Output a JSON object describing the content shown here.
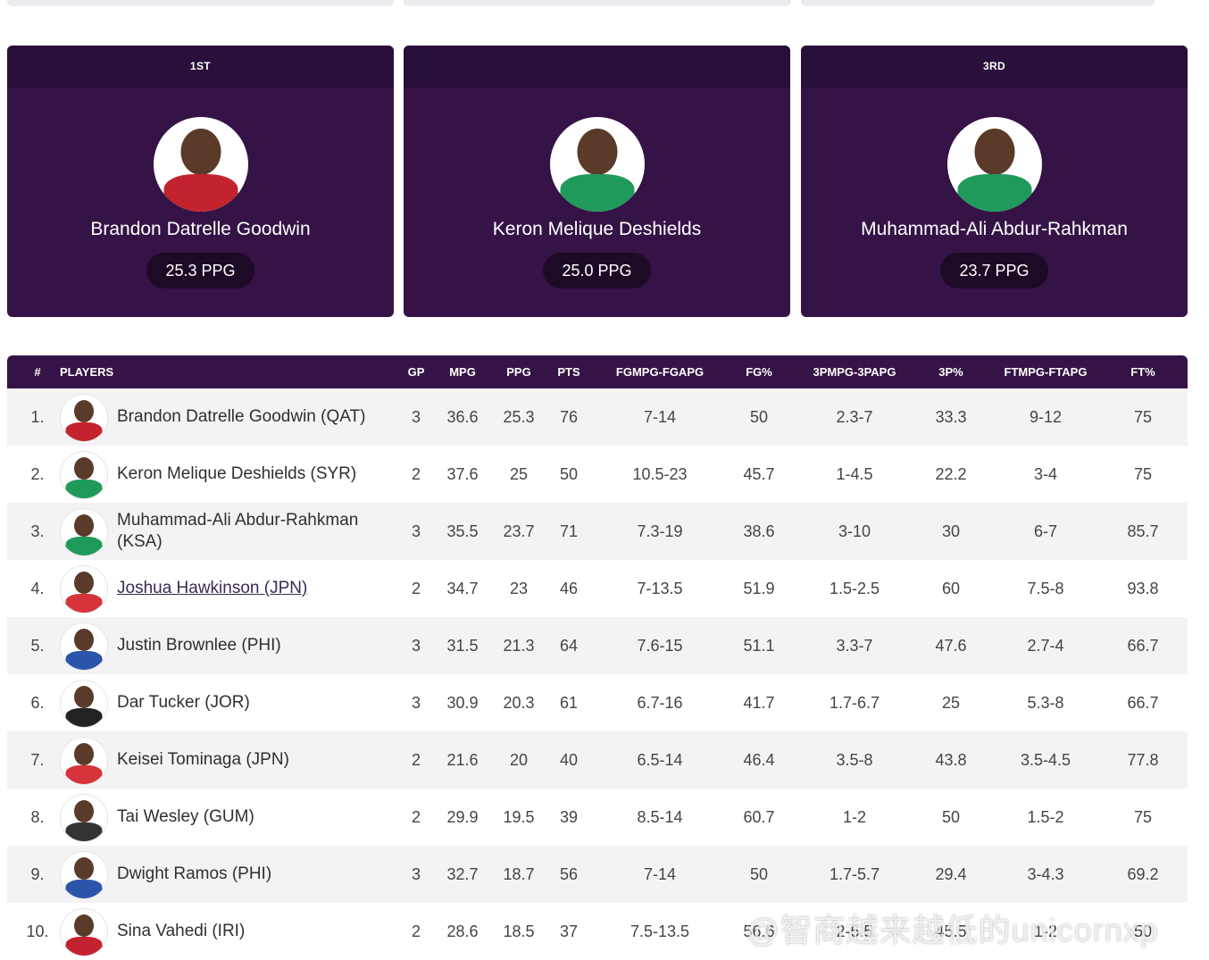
{
  "leaders": [
    {
      "rank_label": "1ST",
      "name": "Brandon Datrelle Goodwin",
      "stat": "25.3 PPG",
      "jersey": "#c3232f"
    },
    {
      "rank_label": "",
      "name": "Keron Melique Deshields",
      "stat": "25.0 PPG",
      "jersey": "#1f9a5a"
    },
    {
      "rank_label": "3RD",
      "name": "Muhammad-Ali Abdur-Rahkman",
      "stat": "23.7 PPG",
      "jersey": "#1f9a5a"
    }
  ],
  "table": {
    "headers": {
      "num": "#",
      "players": "PLAYERS",
      "gp": "GP",
      "mpg": "MPG",
      "ppg": "PPG",
      "pts": "PTS",
      "fg": "FGMPG-FGAPG",
      "fgp": "FG%",
      "tp": "3PMPG-3PAPG",
      "tpp": "3P%",
      "ft": "FTMPG-FTAPG",
      "ftp": "FT%"
    },
    "rows": [
      {
        "num": "1.",
        "player": "Brandon Datrelle Goodwin (QAT)",
        "gp": "3",
        "mpg": "36.6",
        "ppg": "25.3",
        "pts": "76",
        "fg": "7-14",
        "fgp": "50",
        "tp": "2.3-7",
        "tpp": "33.3",
        "ft": "9-12",
        "ftp": "75",
        "jersey": "#c3232f"
      },
      {
        "num": "2.",
        "player": "Keron Melique Deshields (SYR)",
        "gp": "2",
        "mpg": "37.6",
        "ppg": "25",
        "pts": "50",
        "fg": "10.5-23",
        "fgp": "45.7",
        "tp": "1-4.5",
        "tpp": "22.2",
        "ft": "3-4",
        "ftp": "75",
        "jersey": "#1f9a5a"
      },
      {
        "num": "3.",
        "player": "Muhammad-Ali Abdur-Rahkman (KSA)",
        "gp": "3",
        "mpg": "35.5",
        "ppg": "23.7",
        "pts": "71",
        "fg": "7.3-19",
        "fgp": "38.6",
        "tp": "3-10",
        "tpp": "30",
        "ft": "6-7",
        "ftp": "85.7",
        "jersey": "#1f9a5a"
      },
      {
        "num": "4.",
        "player": "Joshua Hawkinson (JPN)",
        "gp": "2",
        "mpg": "34.7",
        "ppg": "23",
        "pts": "46",
        "fg": "7-13.5",
        "fgp": "51.9",
        "tp": "1.5-2.5",
        "tpp": "60",
        "ft": "7.5-8",
        "ftp": "93.8",
        "jersey": "#d6333a"
      },
      {
        "num": "5.",
        "player": "Justin Brownlee (PHI)",
        "gp": "3",
        "mpg": "31.5",
        "ppg": "21.3",
        "pts": "64",
        "fg": "7.6-15",
        "fgp": "51.1",
        "tp": "3.3-7",
        "tpp": "47.6",
        "ft": "2.7-4",
        "ftp": "66.7",
        "jersey": "#2b55a8"
      },
      {
        "num": "6.",
        "player": "Dar Tucker (JOR)",
        "gp": "3",
        "mpg": "30.9",
        "ppg": "20.3",
        "pts": "61",
        "fg": "6.7-16",
        "fgp": "41.7",
        "tp": "1.7-6.7",
        "tpp": "25",
        "ft": "5.3-8",
        "ftp": "66.7",
        "jersey": "#222222"
      },
      {
        "num": "7.",
        "player": "Keisei Tominaga (JPN)",
        "gp": "2",
        "mpg": "21.6",
        "ppg": "20",
        "pts": "40",
        "fg": "6.5-14",
        "fgp": "46.4",
        "tp": "3.5-8",
        "tpp": "43.8",
        "ft": "3.5-4.5",
        "ftp": "77.8",
        "jersey": "#d6333a"
      },
      {
        "num": "8.",
        "player": "Tai Wesley (GUM)",
        "gp": "2",
        "mpg": "29.9",
        "ppg": "19.5",
        "pts": "39",
        "fg": "8.5-14",
        "fgp": "60.7",
        "tp": "1-2",
        "tpp": "50",
        "ft": "1.5-2",
        "ftp": "75",
        "jersey": "#333333"
      },
      {
        "num": "9.",
        "player": "Dwight Ramos (PHI)",
        "gp": "3",
        "mpg": "32.7",
        "ppg": "18.7",
        "pts": "56",
        "fg": "7-14",
        "fgp": "50",
        "tp": "1.7-5.7",
        "tpp": "29.4",
        "ft": "3-4.3",
        "ftp": "69.2",
        "jersey": "#2b55a8"
      },
      {
        "num": "10.",
        "player": "Sina Vahedi (IRI)",
        "gp": "2",
        "mpg": "28.6",
        "ppg": "18.5",
        "pts": "37",
        "fg": "7.5-13.5",
        "fgp": "56.6",
        "tp": "2-5.5",
        "tpp": "45.5",
        "ft": "1-2",
        "ftp": "50",
        "jersey": "#c3232f"
      }
    ]
  },
  "watermark": "@智商越来越低的unicornxp"
}
